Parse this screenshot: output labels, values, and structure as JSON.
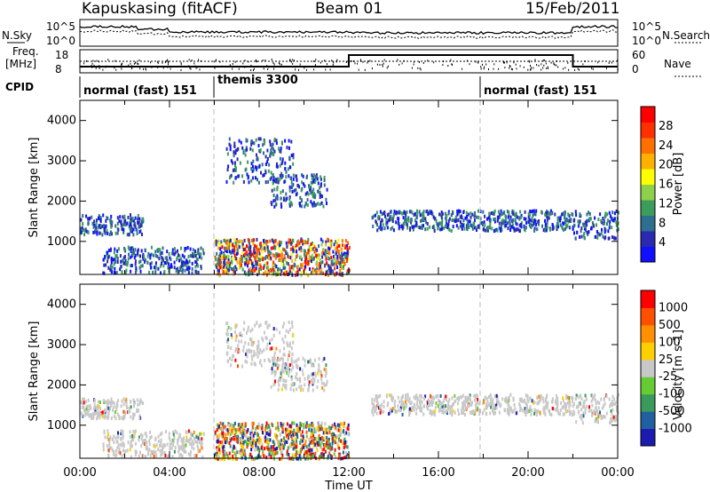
{
  "header": {
    "station": "Kapuskasing (fitACF)",
    "beam": "Beam 01",
    "date": "15/Feb/2011"
  },
  "top_panels": {
    "nsky_label": "N.Sky",
    "nsky_ticks": [
      "10^5",
      "10^0"
    ],
    "nsearch_label": "N.Search",
    "freq_label_1": "Freq.",
    "freq_label_2": "[MHz]",
    "freq_ticks": [
      "18",
      "8"
    ],
    "nave_ticks": [
      "60",
      "0"
    ],
    "nave_label": "Nave",
    "cpid_label": "CPID",
    "cpid_modes": [
      {
        "label": "normal (fast) 151",
        "start_hour": 0,
        "end_hour": 6
      },
      {
        "label": "themis 3300",
        "start_hour": 6,
        "end_hour": 18
      },
      {
        "label": "normal (fast) 151",
        "start_hour": 18,
        "end_hour": 24
      }
    ]
  },
  "chart_data": [
    {
      "type": "heatmap",
      "name": "power",
      "ylabel": "Slant Range [km]",
      "xlabel": "",
      "xlim_hours": [
        0,
        24
      ],
      "ylim_km": [
        180,
        4500
      ],
      "yticks": [
        1000,
        2000,
        3000,
        4000
      ],
      "xtick_labels": [
        "00:00",
        "04:00",
        "08:00",
        "12:00",
        "16:00",
        "20:00",
        "00:00"
      ],
      "colorbar": {
        "label": "Power [dB]",
        "ticks": [
          "28",
          "24",
          "20",
          "16",
          "12",
          "8",
          "4"
        ],
        "colors": [
          "#1010ff",
          "#2a2ab0",
          "#2e6e8e",
          "#3c9c5c",
          "#8ed04a",
          "#ffff00",
          "#ffb000",
          "#ff7000",
          "#ff3000",
          "#ff0000"
        ]
      },
      "scatter_bands_approx": [
        {
          "from_hour": 0.0,
          "to_hour": 2.8,
          "range_km": [
            1200,
            1700
          ]
        },
        {
          "from_hour": 1.0,
          "to_hour": 5.5,
          "range_km": [
            250,
            900
          ]
        },
        {
          "from_hour": 6.5,
          "to_hour": 9.5,
          "range_km": [
            2500,
            3600
          ]
        },
        {
          "from_hour": 8.5,
          "to_hour": 11.0,
          "range_km": [
            1900,
            2700
          ]
        },
        {
          "from_hour": 13.0,
          "to_hour": 22.0,
          "range_km": [
            1300,
            1800
          ]
        },
        {
          "from_hour": 22.0,
          "to_hour": 24.0,
          "range_km": [
            1100,
            1800
          ]
        },
        {
          "from_hour": 6.0,
          "to_hour": 12.0,
          "range_km": [
            200,
            1100
          ]
        }
      ]
    },
    {
      "type": "heatmap",
      "name": "velocity",
      "ylabel": "Slant Range [km]",
      "xlabel": "Time UT",
      "xlim_hours": [
        0,
        24
      ],
      "ylim_km": [
        180,
        4500
      ],
      "yticks": [
        1000,
        2000,
        3000,
        4000
      ],
      "xtick_labels": [
        "00:00",
        "04:00",
        "08:00",
        "12:00",
        "16:00",
        "20:00",
        "00:00"
      ],
      "colorbar": {
        "label": "Velocity [m s-1]",
        "ticks": [
          "1000",
          "500",
          "100",
          "25",
          "-25",
          "-100",
          "-500",
          "-1000"
        ],
        "colors": [
          "#1b1bb0",
          "#2060a0",
          "#3a9a5a",
          "#66cc33",
          "#c8c8c8",
          "#ffd000",
          "#ff9000",
          "#ff5000",
          "#ff0000"
        ]
      },
      "scatter_bands_approx": [
        {
          "from_hour": 0.0,
          "to_hour": 2.8,
          "range_km": [
            1200,
            1700
          ]
        },
        {
          "from_hour": 1.0,
          "to_hour": 5.5,
          "range_km": [
            250,
            900
          ]
        },
        {
          "from_hour": 6.5,
          "to_hour": 9.5,
          "range_km": [
            2500,
            3600
          ]
        },
        {
          "from_hour": 8.5,
          "to_hour": 11.0,
          "range_km": [
            1900,
            2700
          ]
        },
        {
          "from_hour": 13.0,
          "to_hour": 22.0,
          "range_km": [
            1300,
            1800
          ]
        },
        {
          "from_hour": 22.0,
          "to_hour": 24.0,
          "range_km": [
            1100,
            1800
          ]
        },
        {
          "from_hour": 6.0,
          "to_hour": 12.0,
          "range_km": [
            200,
            1100
          ]
        }
      ]
    }
  ]
}
